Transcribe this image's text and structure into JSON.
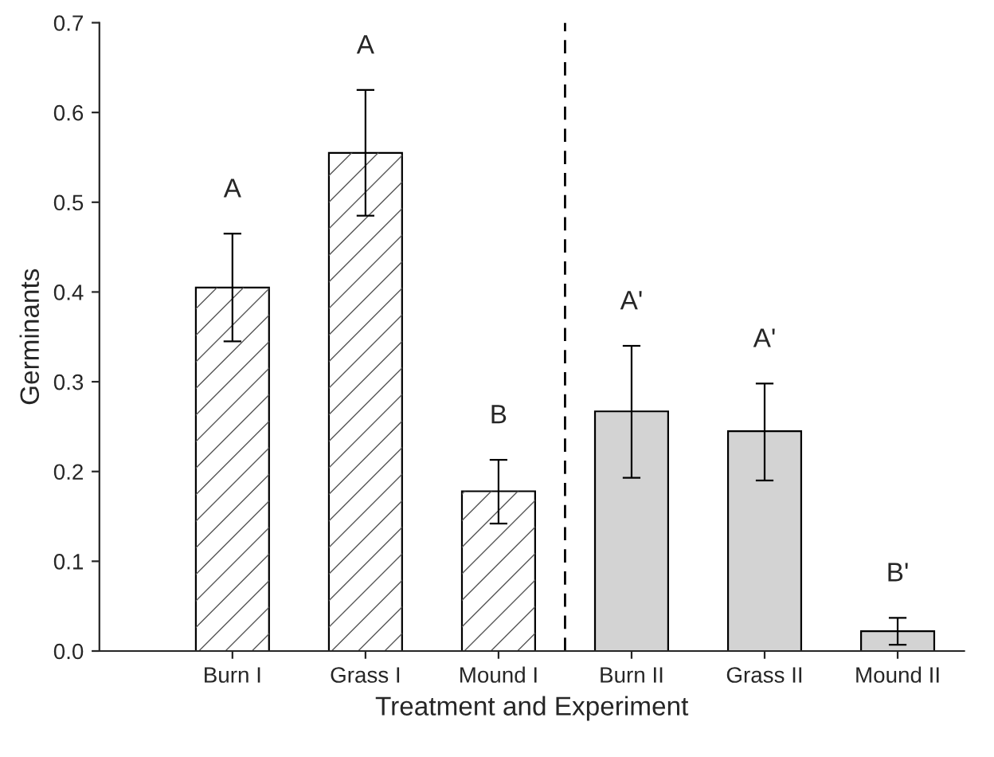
{
  "chart_data": {
    "type": "bar",
    "xlabel": "Treatment and Experiment",
    "ylabel": "Germinants",
    "categories": [
      "Burn I",
      "Grass I",
      "Mound I",
      "Burn II",
      "Grass II",
      "Mound II"
    ],
    "values": [
      0.405,
      0.555,
      0.178,
      0.267,
      0.245,
      0.022
    ],
    "colors": [
      "#ffffff",
      "#ffffff",
      "#ffffff",
      "#d3d3d3",
      "#d3d3d3",
      "#d3d3d3"
    ],
    "errors": [
      [
        0.345,
        0.465
      ],
      [
        0.485,
        0.625
      ],
      [
        0.142,
        0.213
      ],
      [
        0.193,
        0.34
      ],
      [
        0.19,
        0.298
      ],
      [
        0.007,
        0.037
      ]
    ],
    "ylim": [
      0,
      0.7
    ],
    "yticks": [
      {
        "value": 0,
        "label": "0.0"
      },
      0.1,
      0.2,
      0.3,
      0.4,
      0.5,
      0.6,
      0.7
    ],
    "annotations": [
      "A",
      "A",
      "B",
      "A'",
      "A'",
      "B'"
    ],
    "grid": false,
    "legend": false
  }
}
